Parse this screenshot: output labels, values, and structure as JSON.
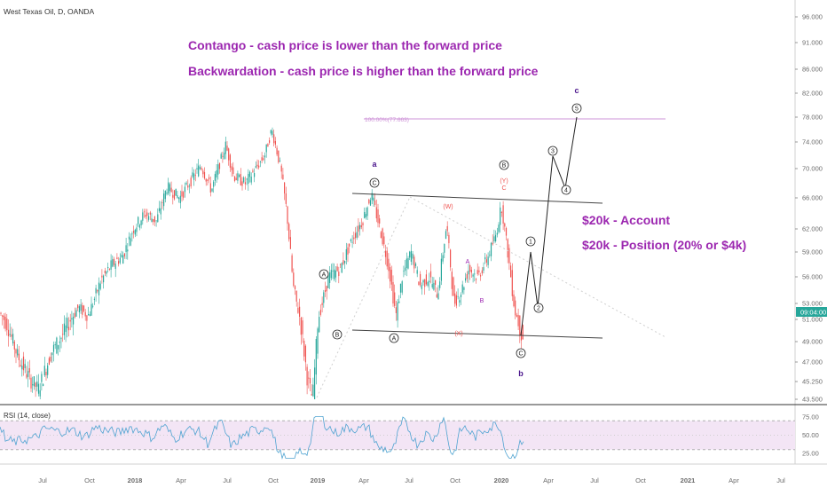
{
  "chart_data": {
    "type": "candlestick",
    "title": "West Texas Oil, D, OANDA",
    "price_axis": {
      "ticks": [
        "96.000",
        "91.000",
        "86.000",
        "82.000",
        "78.000",
        "74.000",
        "70.000",
        "66.000",
        "62.000",
        "59.000",
        "56.000",
        "53.000",
        "51.000",
        "49.000",
        "47.000",
        "45.250",
        "43.500"
      ],
      "last_price": "09:04:00"
    },
    "time_axis": {
      "ticks": [
        "Jul",
        "Oct",
        "2018",
        "Apr",
        "Jul",
        "Oct",
        "2019",
        "Apr",
        "Jul",
        "Oct",
        "2020",
        "Apr",
        "Jul",
        "Oct",
        "2021",
        "Apr",
        "Jul"
      ]
    },
    "colors": {
      "up": "#26a69a",
      "down": "#ef5350",
      "annotation": "#9c27b0",
      "wave_label": "#4a148c",
      "rsi_line": "#4fa3d1",
      "rsi_band": "#f3e5f5"
    },
    "annotations": {
      "contango": "Contango - cash price is lower than the forward price",
      "backwardation": "Backwardation - cash price is higher than the forward price",
      "account": "$20k - Account",
      "position": "$20k - Position (20% or $4k)",
      "fib_label": "100.00%(77.663)"
    },
    "wave_labels": {
      "lower_a": "a",
      "lower_b": "b",
      "lower_c": "c",
      "circled_A": "A",
      "circled_B": "B",
      "circled_C": "C",
      "plain_A": "A",
      "plain_B": "B",
      "plain_C": "C",
      "W": "(W)",
      "X": "(X)",
      "Y": "(Y)",
      "impulse": [
        "1",
        "2",
        "3",
        "4",
        "5"
      ]
    },
    "rsi": {
      "label": "RSI (14, close)",
      "ticks": [
        "75.00",
        "50.00",
        "25.00"
      ],
      "bounds": [
        30,
        70
      ]
    }
  }
}
